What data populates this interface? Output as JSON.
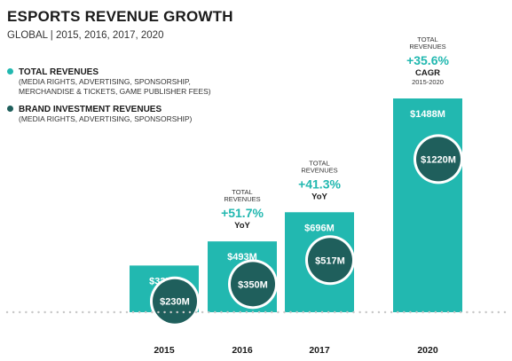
{
  "chart_data": {
    "type": "bar",
    "title": "ESPORTS REVENUE GROWTH",
    "subtitle": "GLOBAL | 2015, 2016, 2017, 2020",
    "categories": [
      "2015",
      "2016",
      "2017",
      "2020"
    ],
    "series": [
      {
        "name": "TOTAL REVENUES",
        "description": "(MEDIA RIGHTS, ADVERTISING, SPONSORSHIP, MERCHANDISE & TICKETS, GAME PUBLISHER FEES)",
        "color": "#22b8b0",
        "values": [
          325,
          493,
          696,
          1488
        ],
        "labels": [
          "$325M",
          "$493M",
          "$696M",
          "$1488M"
        ]
      },
      {
        "name": "BRAND INVESTMENT REVENUES",
        "description": "(MEDIA RIGHTS, ADVERTISING, SPONSORSHIP)",
        "color": "#1f5f5c",
        "values": [
          230,
          350,
          517,
          1220
        ],
        "labels": [
          "$230M",
          "$350M",
          "$517M",
          "$1220M"
        ]
      }
    ],
    "legend_lines": {
      "total_desc_1": "(MEDIA RIGHTS, ADVERTISING, SPONSORSHIP,",
      "total_desc_2": "MERCHANDISE & TICKETS, GAME PUBLISHER FEES)"
    },
    "annotations": [
      {
        "category": "2016",
        "heading_1": "TOTAL",
        "heading_2": "REVENUES",
        "value": "+51.7%",
        "label": "YoY",
        "sublabel": ""
      },
      {
        "category": "2017",
        "heading_1": "TOTAL",
        "heading_2": "REVENUES",
        "value": "+41.3%",
        "label": "YoY",
        "sublabel": ""
      },
      {
        "category": "2020",
        "heading_1": "TOTAL",
        "heading_2": "REVENUES",
        "value": "+35.6%",
        "label": "CAGR",
        "sublabel": "2015-2020"
      }
    ],
    "ylim": [
      0,
      1488
    ],
    "grid": false,
    "legend_position": "top-left",
    "colors": {
      "accent": "#22b8b0",
      "dark": "#1f5f5c",
      "baseline": "#c8c8c8"
    }
  }
}
